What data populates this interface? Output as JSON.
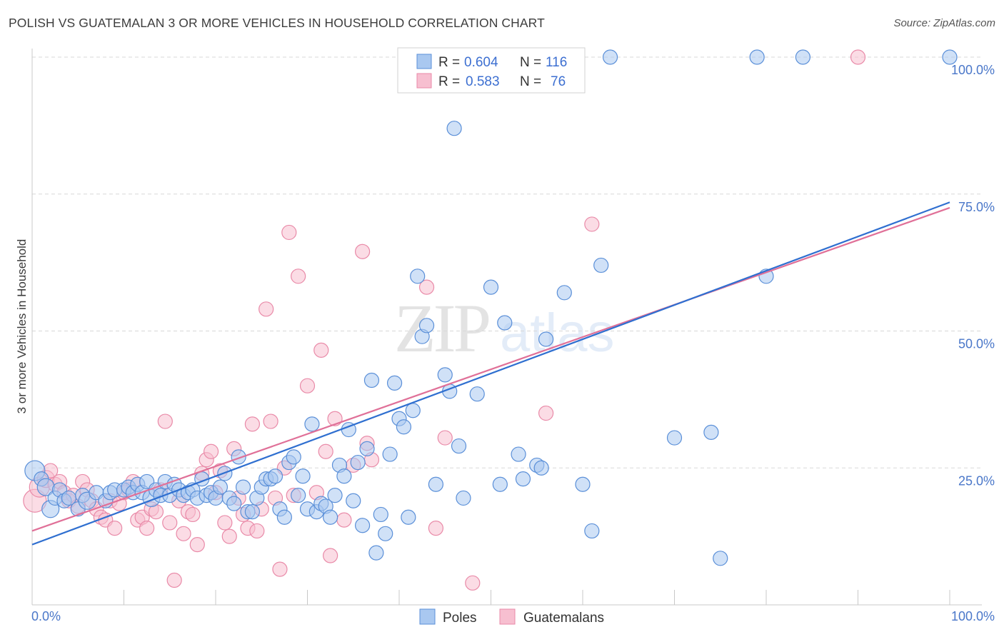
{
  "title": "POLISH VS GUATEMALAN 3 OR MORE VEHICLES IN HOUSEHOLD CORRELATION CHART",
  "source": "Source: ZipAtlas.com",
  "watermark": {
    "zip": "ZIP",
    "atlas": "atlas"
  },
  "colors": {
    "poles_fill": "#a9c8f0",
    "poles_stroke": "#5a8fd8",
    "poles_line": "#2f6fd0",
    "guat_fill": "#f7bfd0",
    "guat_stroke": "#e98aa8",
    "guat_line": "#e07098",
    "tick_label": "#4a77c9",
    "grid": "#d8d8d8"
  },
  "legend": {
    "rows": [
      {
        "r_label": "R =",
        "r_value": "0.604",
        "n_label": "N =",
        "n_value": "116"
      },
      {
        "r_label": "R =",
        "r_value": "0.583",
        "n_label": "N =",
        "n_value": "76"
      }
    ]
  },
  "bottom_legend": {
    "poles": "Poles",
    "guatemalans": "Guatemalans"
  },
  "chart_data": {
    "type": "scatter",
    "title": "POLISH VS GUATEMALAN 3 OR MORE VEHICLES IN HOUSEHOLD CORRELATION CHART",
    "xlabel": "",
    "ylabel": "3 or more Vehicles in Household",
    "xlim": [
      0,
      100
    ],
    "ylim": [
      0,
      100
    ],
    "x_tick_labels": [
      "0.0%",
      "100.0%"
    ],
    "y_tick_labels": [
      "25.0%",
      "50.0%",
      "75.0%",
      "100.0%"
    ],
    "y_ticks": [
      25,
      50,
      75,
      100
    ],
    "grid": true,
    "legend_position": "top-center",
    "series": [
      {
        "name": "Poles",
        "r": 0.604,
        "n": 116,
        "trend": {
          "x": [
            0,
            100
          ],
          "y": [
            11,
            73.5
          ]
        },
        "points": [
          [
            0.3,
            24.5,
            14
          ],
          [
            1,
            23,
            10
          ],
          [
            1.5,
            21.5,
            12
          ],
          [
            2,
            17.5,
            12
          ],
          [
            2.5,
            19.5,
            10
          ],
          [
            3,
            21,
            10
          ],
          [
            3.5,
            19,
            10
          ],
          [
            4,
            19.5,
            10
          ],
          [
            5,
            17.5,
            10
          ],
          [
            5.5,
            20,
            10
          ],
          [
            6,
            19,
            12
          ],
          [
            7,
            20.5,
            10
          ],
          [
            8,
            19,
            10
          ],
          [
            8.5,
            20.5,
            10
          ],
          [
            9,
            21,
            10
          ],
          [
            10,
            21,
            10
          ],
          [
            10.5,
            21.5,
            10
          ],
          [
            11,
            20.5,
            10
          ],
          [
            11.5,
            22,
            10
          ],
          [
            12,
            20.5,
            10
          ],
          [
            12.5,
            22.5,
            10
          ],
          [
            13,
            19.5,
            12
          ],
          [
            13.5,
            21,
            10
          ],
          [
            14,
            20,
            10
          ],
          [
            14.5,
            22.5,
            10
          ],
          [
            15,
            20,
            10
          ],
          [
            15.5,
            22,
            10
          ],
          [
            16,
            21,
            10
          ],
          [
            16.5,
            20,
            10
          ],
          [
            17,
            20.5,
            10
          ],
          [
            17.5,
            21,
            10
          ],
          [
            18,
            19.5,
            10
          ],
          [
            18.5,
            23,
            10
          ],
          [
            19,
            20,
            10
          ],
          [
            19.5,
            20.5,
            10
          ],
          [
            20,
            19.5,
            10
          ],
          [
            20.5,
            21.5,
            10
          ],
          [
            21,
            24,
            10
          ],
          [
            21.5,
            19.5,
            10
          ],
          [
            22,
            18.5,
            10
          ],
          [
            22.5,
            27,
            10
          ],
          [
            23,
            21.5,
            10
          ],
          [
            23.5,
            17,
            10
          ],
          [
            24,
            17,
            10
          ],
          [
            24.5,
            19.5,
            10
          ],
          [
            25,
            21.5,
            10
          ],
          [
            25.5,
            23,
            10
          ],
          [
            26,
            23,
            10
          ],
          [
            26.5,
            23.5,
            10
          ],
          [
            27,
            17.5,
            10
          ],
          [
            27.5,
            16,
            10
          ],
          [
            28,
            26,
            10
          ],
          [
            28.5,
            27,
            10
          ],
          [
            29,
            20,
            10
          ],
          [
            29.5,
            23.5,
            10
          ],
          [
            30,
            17.5,
            10
          ],
          [
            30.5,
            33,
            10
          ],
          [
            31,
            17,
            10
          ],
          [
            31.5,
            18.5,
            10
          ],
          [
            32,
            18,
            10
          ],
          [
            32.5,
            16,
            10
          ],
          [
            33,
            20,
            10
          ],
          [
            33.5,
            25.5,
            10
          ],
          [
            34,
            23.5,
            10
          ],
          [
            34.5,
            32,
            10
          ],
          [
            35,
            19,
            10
          ],
          [
            35.5,
            26,
            10
          ],
          [
            36,
            14.5,
            10
          ],
          [
            36.5,
            28.5,
            10
          ],
          [
            37,
            41,
            10
          ],
          [
            37.5,
            9.5,
            10
          ],
          [
            38,
            16.5,
            10
          ],
          [
            38.5,
            13,
            10
          ],
          [
            39,
            27.5,
            10
          ],
          [
            39.5,
            40.5,
            10
          ],
          [
            40,
            34,
            10
          ],
          [
            40.5,
            32.5,
            10
          ],
          [
            41,
            16,
            10
          ],
          [
            41.5,
            35.5,
            10
          ],
          [
            42,
            60,
            10
          ],
          [
            42.5,
            49,
            10
          ],
          [
            43,
            51,
            10
          ],
          [
            44,
            22,
            10
          ],
          [
            45,
            42,
            10
          ],
          [
            45.5,
            39,
            10
          ],
          [
            46,
            87,
            10
          ],
          [
            46.5,
            29,
            10
          ],
          [
            47,
            19.5,
            10
          ],
          [
            48.5,
            38.5,
            10
          ],
          [
            49,
            100,
            10
          ],
          [
            50,
            58,
            10
          ],
          [
            51,
            22,
            10
          ],
          [
            51.5,
            51.5,
            10
          ],
          [
            53,
            27.5,
            10
          ],
          [
            53.5,
            23,
            10
          ],
          [
            54,
            100,
            10
          ],
          [
            55,
            25.5,
            10
          ],
          [
            55.5,
            25,
            10
          ],
          [
            56,
            48.5,
            10
          ],
          [
            58,
            57,
            10
          ],
          [
            60,
            22,
            10
          ],
          [
            61,
            13.5,
            10
          ],
          [
            62,
            62,
            10
          ],
          [
            63,
            100,
            10
          ],
          [
            70,
            30.5,
            10
          ],
          [
            74,
            31.5,
            10
          ],
          [
            75,
            8.5,
            10
          ],
          [
            79,
            100,
            10
          ],
          [
            80,
            60,
            10
          ],
          [
            84,
            100,
            10
          ],
          [
            100,
            100,
            10
          ]
        ]
      },
      {
        "name": "Guatemalans",
        "r": 0.583,
        "n": 76,
        "trend": {
          "x": [
            0,
            100
          ],
          "y": [
            13.5,
            72.5
          ]
        },
        "points": [
          [
            0.3,
            19,
            16
          ],
          [
            0.8,
            21.5,
            14
          ],
          [
            1.5,
            23,
            12
          ],
          [
            2,
            24.5,
            10
          ],
          [
            2.5,
            22,
            10
          ],
          [
            3,
            22.5,
            10
          ],
          [
            3.5,
            20.5,
            10
          ],
          [
            4,
            19,
            10
          ],
          [
            4.5,
            20,
            10
          ],
          [
            5,
            18,
            10
          ],
          [
            5.5,
            22.5,
            10
          ],
          [
            6,
            21,
            10
          ],
          [
            6.5,
            19,
            10
          ],
          [
            7,
            17.5,
            10
          ],
          [
            7.5,
            16,
            10
          ],
          [
            8,
            15.5,
            10
          ],
          [
            8.5,
            19,
            10
          ],
          [
            9,
            14,
            10
          ],
          [
            9.5,
            18.5,
            10
          ],
          [
            10,
            20.5,
            10
          ],
          [
            10.5,
            21,
            10
          ],
          [
            11,
            22.5,
            10
          ],
          [
            11.5,
            15.5,
            10
          ],
          [
            12,
            16,
            10
          ],
          [
            12.5,
            14,
            10
          ],
          [
            13,
            17.5,
            10
          ],
          [
            13.5,
            17,
            10
          ],
          [
            14,
            21,
            10
          ],
          [
            14.5,
            33.5,
            10
          ],
          [
            15,
            15,
            10
          ],
          [
            15.5,
            4.5,
            10
          ],
          [
            16,
            19,
            10
          ],
          [
            16.5,
            13,
            10
          ],
          [
            17,
            17,
            10
          ],
          [
            17.5,
            16.5,
            10
          ],
          [
            18,
            11,
            10
          ],
          [
            18.5,
            24,
            10
          ],
          [
            19,
            26.5,
            10
          ],
          [
            19.5,
            28,
            10
          ],
          [
            20,
            20.5,
            10
          ],
          [
            20.5,
            24.5,
            10
          ],
          [
            21,
            15,
            10
          ],
          [
            21.5,
            12.5,
            10
          ],
          [
            22,
            28.5,
            10
          ],
          [
            22.5,
            19.5,
            10
          ],
          [
            23,
            16.5,
            10
          ],
          [
            23.5,
            14,
            10
          ],
          [
            24,
            33,
            10
          ],
          [
            24.5,
            13.5,
            10
          ],
          [
            25,
            17.5,
            10
          ],
          [
            25.5,
            54,
            10
          ],
          [
            26,
            33.5,
            10
          ],
          [
            26.5,
            19.5,
            10
          ],
          [
            27,
            6.5,
            10
          ],
          [
            27.5,
            25,
            10
          ],
          [
            28,
            68,
            10
          ],
          [
            28.5,
            20,
            10
          ],
          [
            29,
            60,
            10
          ],
          [
            30,
            40,
            10
          ],
          [
            31,
            20.5,
            10
          ],
          [
            31.5,
            46.5,
            10
          ],
          [
            32,
            28,
            10
          ],
          [
            32.5,
            9,
            10
          ],
          [
            33,
            34,
            10
          ],
          [
            34,
            15.5,
            10
          ],
          [
            35,
            25.5,
            10
          ],
          [
            36,
            64.5,
            10
          ],
          [
            36.5,
            29.5,
            10
          ],
          [
            37,
            26.5,
            10
          ],
          [
            43,
            58,
            10
          ],
          [
            45,
            30.5,
            10
          ],
          [
            44,
            14,
            10
          ],
          [
            48,
            4,
            10
          ],
          [
            56,
            35,
            10
          ],
          [
            61,
            69.5,
            10
          ],
          [
            90,
            100,
            10
          ]
        ]
      }
    ]
  }
}
